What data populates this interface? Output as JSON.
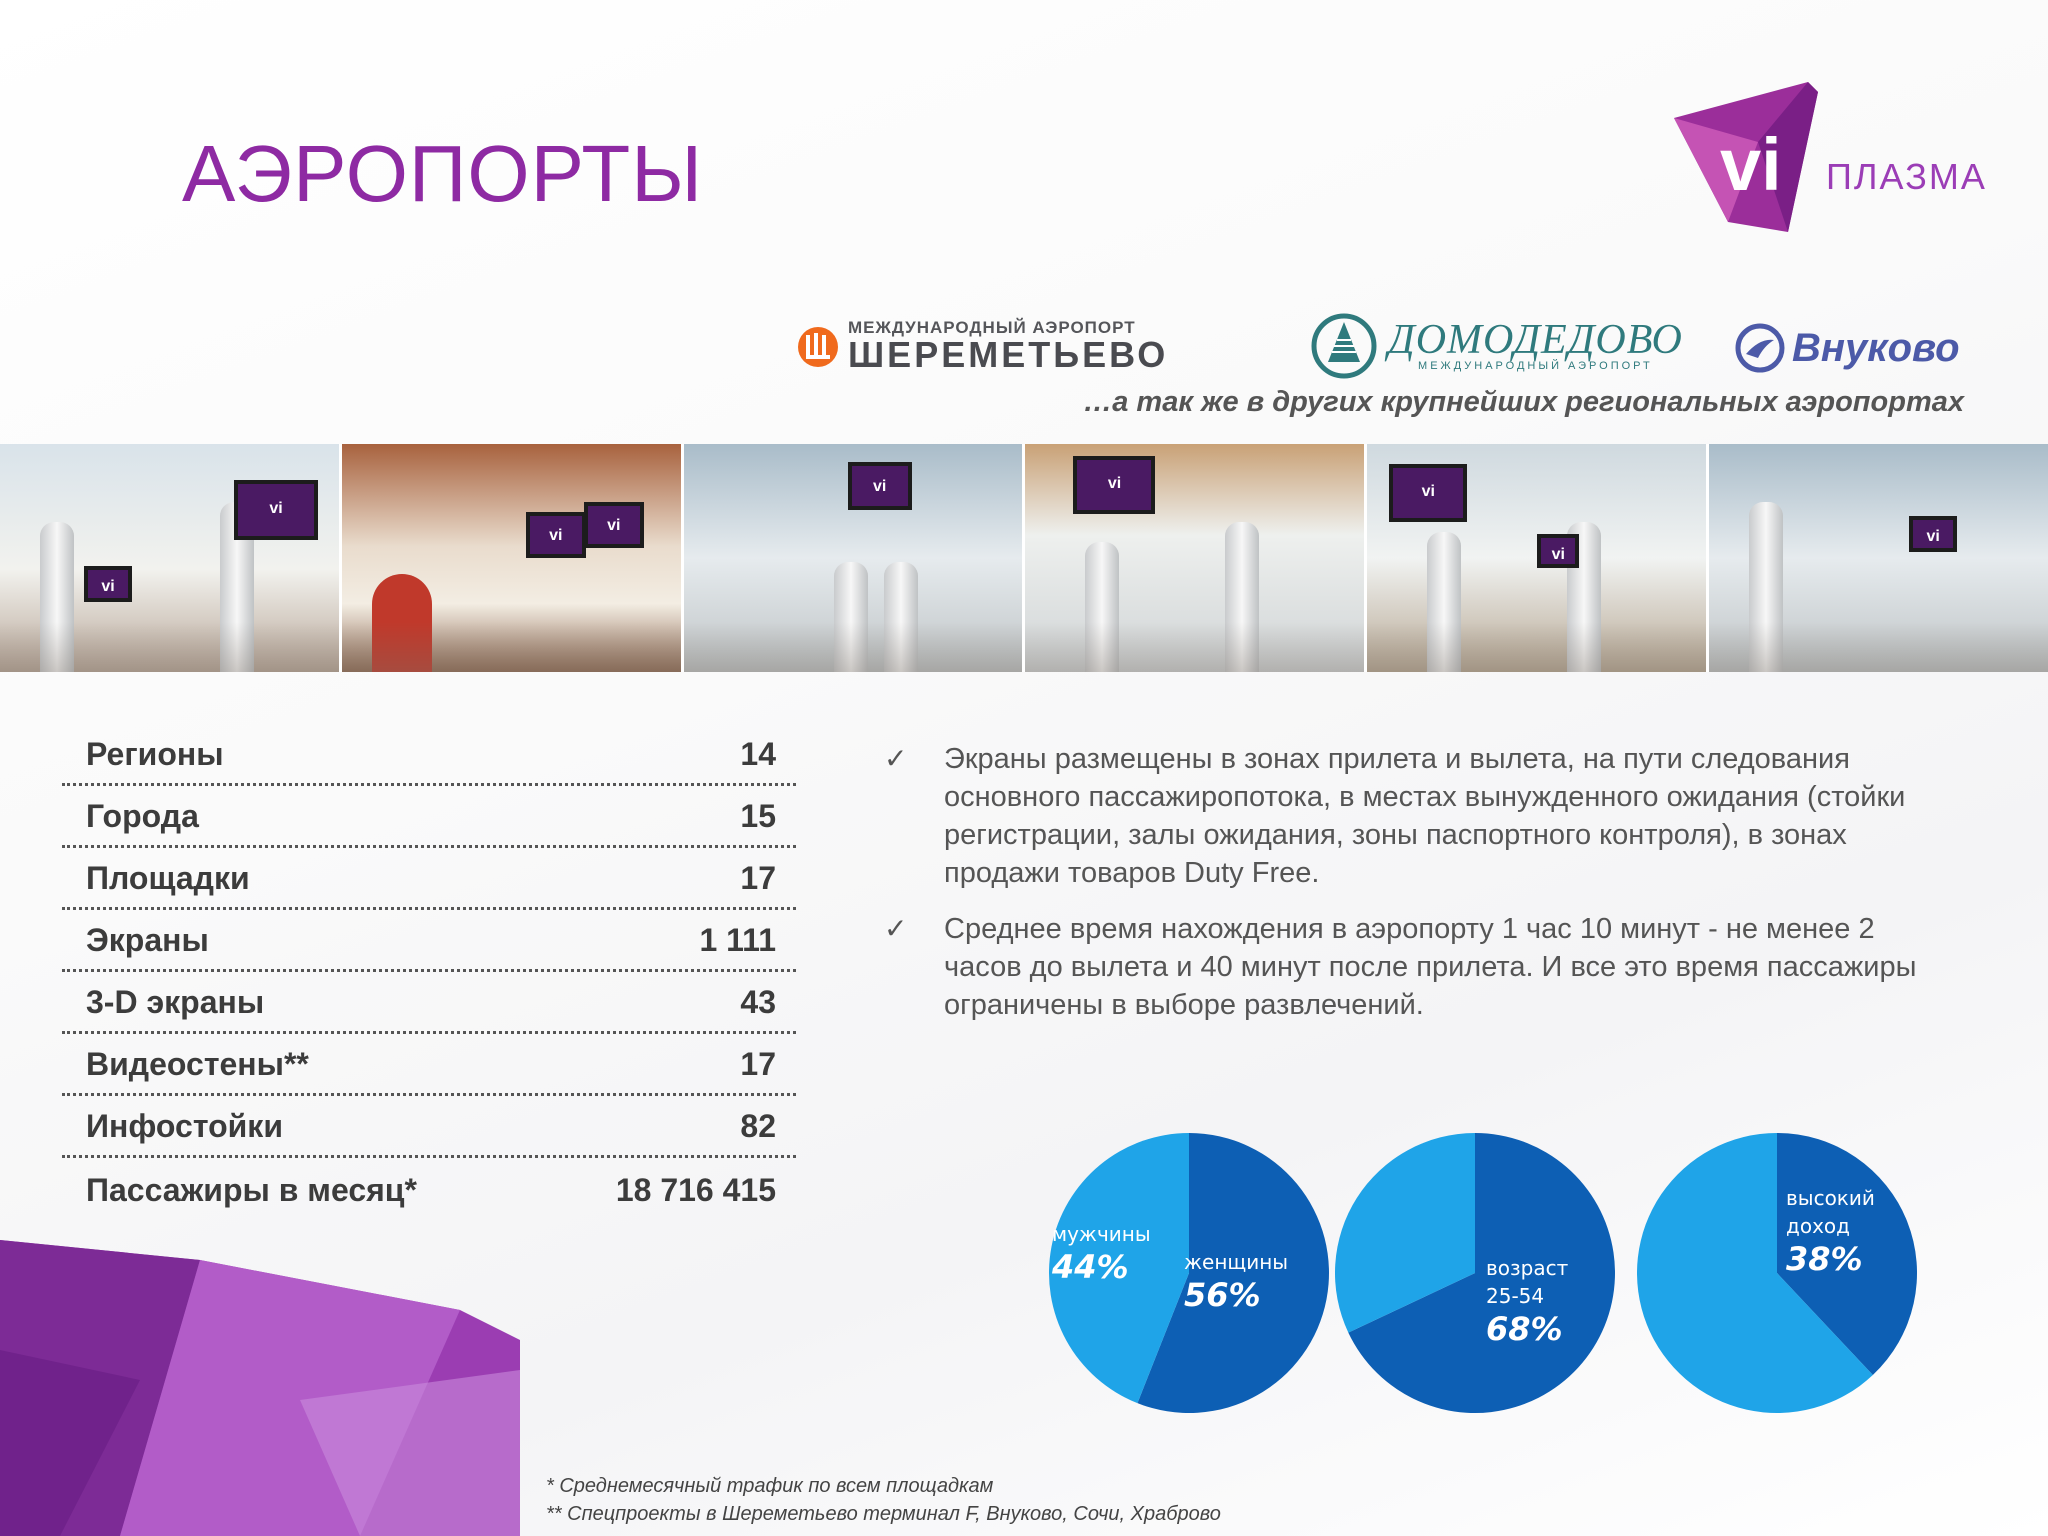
{
  "title": "АЭРОПОРТЫ",
  "brand": {
    "mark": "vi",
    "word": "ПЛАЗМА",
    "color": "#8e2aa3"
  },
  "airports": [
    {
      "small": "МЕЖДУНАРОДНЫЙ АЭРОПОРТ",
      "name": "ШЕРЕМЕТЬЕВО"
    },
    {
      "name": "ДОМОДЕДОВО",
      "small": "МЕЖДУНАРОДНЫЙ АЭРОПОРТ"
    },
    {
      "name": "Внуково"
    }
  ],
  "tagline": "…а так же в других крупнейших региональных аэропортах",
  "photo_screen_label": "vi",
  "stats": [
    {
      "label": "Регионы",
      "value": "14"
    },
    {
      "label": "Города",
      "value": "15"
    },
    {
      "label": "Площадки",
      "value": "17"
    },
    {
      "label": "Экраны",
      "value": "1 111"
    },
    {
      "label": "3-D экраны",
      "value": "43"
    },
    {
      "label": "Видеостены**",
      "value": "17"
    },
    {
      "label": "Инфостойки",
      "value": "82"
    },
    {
      "label": "Пассажиры в месяц*",
      "value": "18 716 415"
    }
  ],
  "bullets": [
    "Экраны размещены в зонах прилета и вылета, на пути следования основного пассажиропотока, в местах вынужденного ожидания (стойки регистрации, залы ожидания, зоны паспортного контроля), в зонах продажи товаров Duty Free.",
    "Среднее время нахождения в аэропорту 1 час 10 минут - не менее 2 часов до вылета и 40 минут после прилета. И все это время пассажиры ограничены в выборе развлечений."
  ],
  "check_symbol": "✓",
  "pies": [
    {
      "slices": [
        {
          "label": "мужчины",
          "value_text": "44%",
          "value": 44
        },
        {
          "label": "женщины",
          "value_text": "56%",
          "value": 56
        }
      ]
    },
    {
      "slices": [
        {
          "label": "",
          "value": 32
        },
        {
          "label": "возраст 25-54",
          "value_text": "68%",
          "value": 68
        }
      ]
    },
    {
      "slices": [
        {
          "label": "высокий доход",
          "value_text": "38%",
          "value": 38
        },
        {
          "label": "",
          "value": 62
        }
      ]
    }
  ],
  "pie_colors": {
    "dark": "#0d5fb4",
    "light": "#1fa4e8"
  },
  "footnotes": [
    "* Среднемесячный трафик по всем площадкам",
    "** Спецпроекты в Шереметьево терминал F, Внуково, Сочи, Храброво"
  ]
}
